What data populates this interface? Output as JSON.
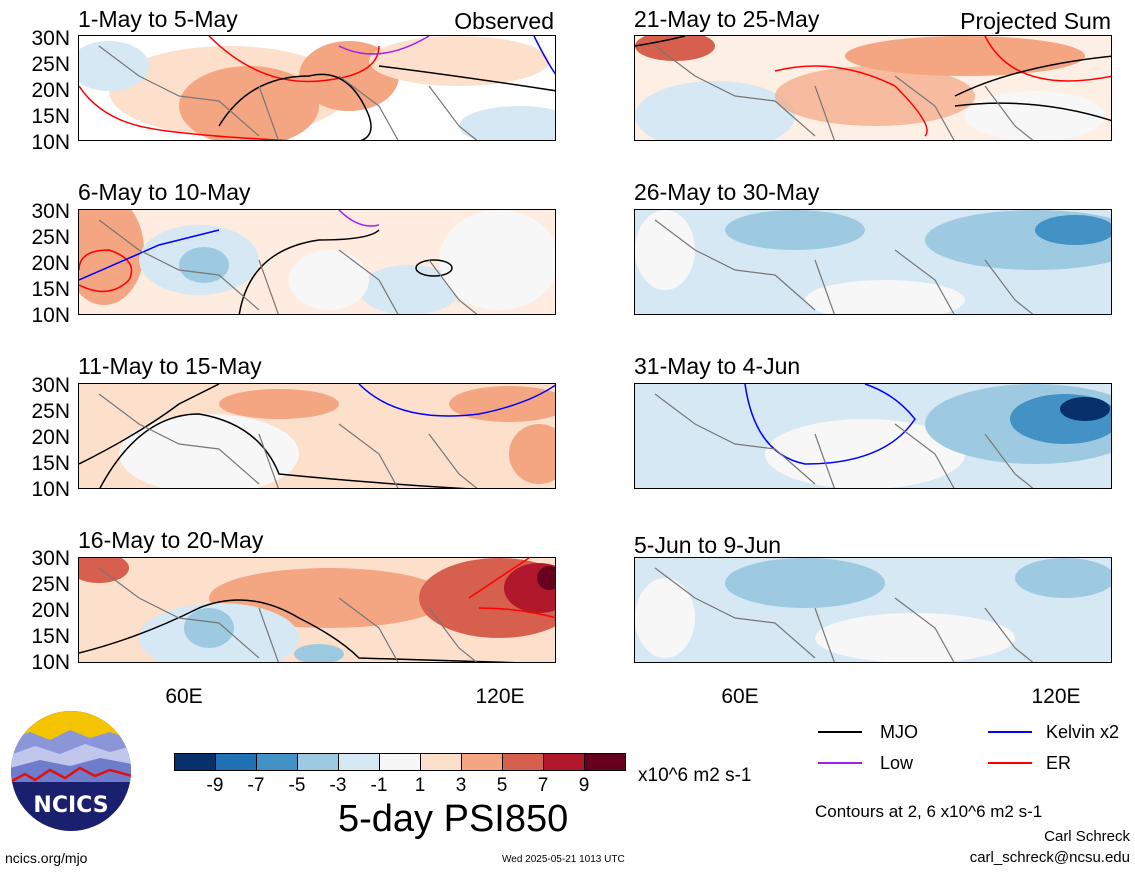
{
  "panels": [
    {
      "title": "1-May to 5-May",
      "tag": "Observed"
    },
    {
      "title": "6-May to 10-May",
      "tag": ""
    },
    {
      "title": "11-May to 15-May",
      "tag": ""
    },
    {
      "title": "16-May to 20-May",
      "tag": ""
    },
    {
      "title": "21-May to 25-May",
      "tag": "Projected Sum"
    },
    {
      "title": "26-May to 30-May",
      "tag": ""
    },
    {
      "title": "31-May to 4-Jun",
      "tag": ""
    },
    {
      "title": "5-Jun to 9-Jun",
      "tag": ""
    }
  ],
  "lat_labels": [
    "30N",
    "25N",
    "20N",
    "15N",
    "10N"
  ],
  "lon_labels": [
    "60E",
    "120E"
  ],
  "colorbar": {
    "colors": [
      "#08306b",
      "#2171b5",
      "#4292c6",
      "#9ecae1",
      "#d6e8f4",
      "#f7f7f7",
      "#fde0cc",
      "#f4a582",
      "#d6604d",
      "#b2182b",
      "#67001f"
    ],
    "labels": [
      "-9",
      "-7",
      "-5",
      "-3",
      "-1",
      "1",
      "3",
      "5",
      "7",
      "9"
    ],
    "units": "x10^6 m2 s-1"
  },
  "legend": {
    "mjo": {
      "label": "MJO",
      "color": "#000000"
    },
    "kelvin": {
      "label": "Kelvin x2",
      "color": "#0000ff"
    },
    "low": {
      "label": "Low",
      "color": "#a020f0"
    },
    "er": {
      "label": "ER",
      "color": "#ff0000"
    }
  },
  "main_title": "5-day PSI850",
  "contours_note": "Contours at 2, 6 x10^6 m2 s-1",
  "author": "Carl Schreck",
  "email": "carl_schreck@ncsu.edu",
  "site": "ncics.org/mjo",
  "timestamp": "Wed 2025-05-21 1013 UTC",
  "logo": {
    "text": "NCICS"
  }
}
